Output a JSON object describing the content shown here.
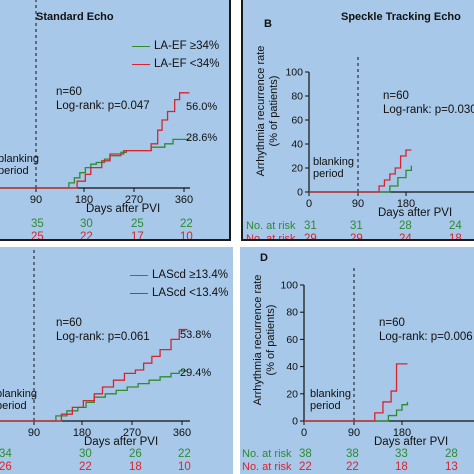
{
  "colors": {
    "green": "#2e8b2e",
    "red": "#d8242e",
    "panel_bg": "#a7c8e8"
  },
  "panels": {
    "A": {
      "title": "Standard Echo",
      "legend": [
        "LA-EF ≥34%",
        "LA-EF <34%"
      ],
      "stats": [
        "n=60",
        "Log-rank: p=0.047"
      ],
      "end_labels": [
        "56.0%",
        "28.6%"
      ],
      "blanking": [
        "blanking",
        "period"
      ],
      "xlabel": "Days after PVI",
      "xticks": [
        "90",
        "180",
        "270",
        "360"
      ],
      "risk_green": [
        "35",
        "30",
        "25",
        "22"
      ],
      "risk_red": [
        "25",
        "22",
        "17",
        "10"
      ]
    },
    "B": {
      "letter": "B",
      "title": "Speckle Tracking Echo",
      "stats": [
        "n=60",
        "Log-rank: p=0.030"
      ],
      "blanking": [
        "blanking",
        "period"
      ],
      "xlabel": "Days after PVI",
      "ylabel": [
        "Arrhythmia recurrence rate",
        "(% of patients)"
      ],
      "yticks": [
        "100",
        "80",
        "60",
        "40",
        "20",
        "0"
      ],
      "xticks": [
        "0",
        "90",
        "180"
      ],
      "risk_label_green": "No. at risk",
      "risk_label_red": "No. at risk",
      "risk_green": [
        "31",
        "31",
        "28",
        "24"
      ],
      "risk_red": [
        "29",
        "29",
        "24",
        "18"
      ]
    },
    "C": {
      "legend": [
        "LAScd ≥13.4%",
        "LAScd <13.4%"
      ],
      "stats": [
        "n=60",
        "Log-rank: p=0.061"
      ],
      "end_labels": [
        "53.8%",
        "29.4%"
      ],
      "blanking": [
        "blanking",
        "period"
      ],
      "xlabel": "Days after PVI",
      "xticks": [
        "90",
        "180",
        "270",
        "360"
      ],
      "risk_green": [
        "34",
        "30",
        "26",
        "22"
      ],
      "risk_red": [
        "26",
        "22",
        "18",
        "10"
      ]
    },
    "D": {
      "letter": "D",
      "stats": [
        "n=60",
        "Log-rank: p=0.006"
      ],
      "blanking": [
        "blanking",
        "period"
      ],
      "xlabel": "Days after PVI",
      "ylabel": [
        "Arrhythmia recurrence rate",
        "(% of patients)"
      ],
      "yticks": [
        "100",
        "80",
        "60",
        "40",
        "20",
        "0"
      ],
      "xticks": [
        "0",
        "90",
        "180"
      ],
      "risk_label_green": "No. at risk",
      "risk_label_red": "No. at risk",
      "risk_green": [
        "38",
        "38",
        "33",
        "28"
      ],
      "risk_red": [
        "22",
        "22",
        "18",
        "13"
      ]
    }
  },
  "chart_data": [
    {
      "panel": "A",
      "type": "line",
      "xlabel": "Days after PVI",
      "xlim": [
        0,
        370
      ],
      "ylim": [
        0,
        100
      ],
      "series": [
        {
          "name": "LA-EF ≥34%",
          "color": "green",
          "x": [
            0,
            145,
            150,
            160,
            170,
            180,
            190,
            200,
            215,
            225,
            245,
            255,
            275,
            300,
            325,
            340,
            370
          ],
          "y": [
            0,
            0,
            3,
            6,
            9,
            12,
            14,
            15,
            17,
            19,
            21,
            22,
            22,
            24,
            26,
            28.6,
            28.6
          ]
        },
        {
          "name": "LA-EF <34%",
          "color": "red",
          "x": [
            0,
            150,
            165,
            180,
            190,
            210,
            225,
            250,
            275,
            300,
            312,
            320,
            330,
            343,
            352,
            370
          ],
          "y": [
            0,
            0,
            4,
            8,
            12,
            16,
            20,
            22,
            22,
            26,
            34,
            40,
            45,
            52,
            56,
            56
          ]
        }
      ]
    },
    {
      "panel": "B",
      "type": "line",
      "ylabel": "Arrhythmia recurrence rate (% of patients)",
      "xlabel": "Days after PVI",
      "xlim": [
        0,
        190
      ],
      "ylim": [
        0,
        100
      ],
      "series": [
        {
          "color": "green",
          "x": [
            0,
            140,
            150,
            165,
            180,
            190
          ],
          "y": [
            0,
            0,
            5,
            12,
            18,
            22
          ]
        },
        {
          "color": "red",
          "x": [
            0,
            120,
            130,
            140,
            150,
            160,
            170,
            180,
            190
          ],
          "y": [
            0,
            0,
            5,
            10,
            15,
            20,
            30,
            35,
            35
          ]
        }
      ]
    },
    {
      "panel": "C",
      "type": "line",
      "xlabel": "Days after PVI",
      "xlim": [
        0,
        370
      ],
      "ylim": [
        0,
        100
      ],
      "series": [
        {
          "name": "LAScd ≥13.4%",
          "color": "green",
          "x": [
            0,
            120,
            130,
            150,
            170,
            185,
            200,
            220,
            240,
            260,
            280,
            300,
            320,
            340,
            355,
            370
          ],
          "y": [
            0,
            0,
            3,
            6,
            8,
            11,
            14,
            16,
            18,
            20,
            22,
            24,
            26,
            28,
            29.4,
            29.4
          ]
        },
        {
          "name": "LAScd <13.4%",
          "color": "red",
          "x": [
            0,
            125,
            140,
            160,
            180,
            200,
            215,
            235,
            255,
            275,
            290,
            305,
            320,
            340,
            355,
            370
          ],
          "y": [
            0,
            0,
            4,
            8,
            12,
            16,
            20,
            24,
            28,
            30,
            34,
            38,
            42,
            48,
            53.8,
            53.8
          ]
        }
      ]
    },
    {
      "panel": "D",
      "type": "line",
      "ylabel": "Arrhythmia recurrence rate (% of patients)",
      "xlabel": "Days after PVI",
      "xlim": [
        0,
        190
      ],
      "ylim": [
        0,
        100
      ],
      "series": [
        {
          "color": "green",
          "x": [
            0,
            140,
            155,
            170,
            180,
            190
          ],
          "y": [
            0,
            0,
            4,
            8,
            12,
            14
          ]
        },
        {
          "color": "red",
          "x": [
            0,
            120,
            130,
            145,
            160,
            170,
            190
          ],
          "y": [
            0,
            0,
            6,
            14,
            22,
            42,
            42
          ]
        }
      ]
    }
  ]
}
